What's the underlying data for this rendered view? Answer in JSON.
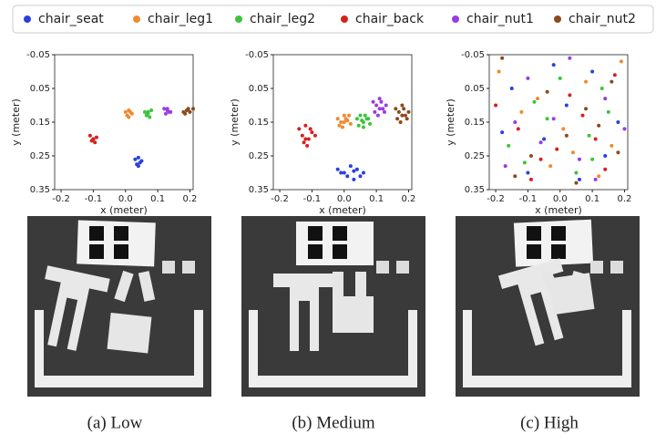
{
  "chart_data": [
    {
      "type": "scatter",
      "caption": "(a) Low",
      "xlabel": "x (meter)",
      "ylabel": "y (meter)",
      "xlim": [
        -0.22,
        0.21
      ],
      "ylim": [
        -0.05,
        0.35
      ],
      "y_inverted": true,
      "xticks": [
        -0.2,
        -0.1,
        {
          "value": 0,
          "label": "0.0"
        },
        0.1,
        0.2
      ],
      "yticks": [
        -0.05,
        0.05,
        0.15,
        0.25,
        0.35
      ],
      "series": [
        {
          "name": "chair_seat",
          "color": "#2b3fe0",
          "x": [
            0.03,
            0.04,
            0.05,
            0.035,
            0.045,
            0.04
          ],
          "values": [
            0.26,
            0.255,
            0.265,
            0.275,
            0.27,
            0.28
          ]
        },
        {
          "name": "chair_leg1",
          "color": "#f08a30",
          "x": [
            0.0,
            0.01,
            0.02,
            0.005,
            0.015,
            0.01
          ],
          "values": [
            0.12,
            0.115,
            0.125,
            0.13,
            0.12,
            0.135
          ]
        },
        {
          "name": "chair_leg2",
          "color": "#3cc43c",
          "x": [
            0.06,
            0.07,
            0.08,
            0.065,
            0.075,
            0.07
          ],
          "values": [
            0.12,
            0.125,
            0.115,
            0.13,
            0.135,
            0.12
          ]
        },
        {
          "name": "chair_back",
          "color": "#d62020",
          "x": [
            -0.11,
            -0.1,
            -0.09,
            -0.105,
            -0.095,
            -0.1
          ],
          "values": [
            0.19,
            0.2,
            0.195,
            0.205,
            0.21,
            0.2
          ]
        },
        {
          "name": "chair_nut1",
          "color": "#9a3ce0",
          "x": [
            0.12,
            0.13,
            0.14,
            0.125,
            0.135,
            0.13
          ],
          "values": [
            0.11,
            0.115,
            0.12,
            0.125,
            0.12,
            0.11
          ]
        },
        {
          "name": "chair_nut2",
          "color": "#8b4a1c",
          "x": [
            0.18,
            0.19,
            0.2,
            0.185,
            0.195,
            0.21
          ],
          "values": [
            0.12,
            0.115,
            0.12,
            0.125,
            0.11,
            0.11
          ]
        }
      ]
    },
    {
      "type": "scatter",
      "caption": "(b) Medium",
      "xlabel": "x (meter)",
      "ylabel": "y (meter)",
      "xlim": [
        -0.22,
        0.21
      ],
      "ylim": [
        -0.05,
        0.35
      ],
      "y_inverted": true,
      "xticks": [
        -0.2,
        -0.1,
        {
          "value": 0,
          "label": "0.0"
        },
        0.1,
        0.2
      ],
      "yticks": [
        -0.05,
        0.05,
        0.15,
        0.25,
        0.35
      ],
      "series": [
        {
          "color": "#2b3fe0",
          "x": [
            -0.02,
            0.0,
            0.02,
            0.04,
            0.06,
            0.01,
            0.03,
            0.05,
            -0.01,
            0.03
          ],
          "values": [
            0.29,
            0.3,
            0.28,
            0.29,
            0.3,
            0.31,
            0.32,
            0.31,
            0.3,
            0.295
          ]
        },
        {
          "color": "#f08a30",
          "x": [
            -0.02,
            -0.01,
            0.0,
            0.01,
            0.02,
            -0.005,
            0.005,
            0.015,
            -0.015,
            0.0
          ],
          "values": [
            0.14,
            0.15,
            0.13,
            0.145,
            0.155,
            0.165,
            0.14,
            0.13,
            0.16,
            0.15
          ]
        },
        {
          "color": "#3cc43c",
          "x": [
            0.04,
            0.05,
            0.06,
            0.07,
            0.08,
            0.045,
            0.055,
            0.065,
            0.075,
            0.06
          ],
          "values": [
            0.14,
            0.13,
            0.15,
            0.14,
            0.155,
            0.16,
            0.145,
            0.13,
            0.14,
            0.165
          ]
        },
        {
          "color": "#d62020",
          "x": [
            -0.14,
            -0.13,
            -0.12,
            -0.11,
            -0.1,
            -0.09,
            -0.125,
            -0.115,
            -0.105,
            -0.12
          ],
          "values": [
            0.17,
            0.19,
            0.16,
            0.2,
            0.18,
            0.19,
            0.21,
            0.22,
            0.17,
            0.2
          ]
        },
        {
          "color": "#9a3ce0",
          "x": [
            0.09,
            0.1,
            0.11,
            0.12,
            0.13,
            0.095,
            0.105,
            0.115,
            0.125,
            0.11
          ],
          "values": [
            0.09,
            0.1,
            0.08,
            0.11,
            0.1,
            0.12,
            0.13,
            0.09,
            0.12,
            0.11
          ]
        },
        {
          "color": "#8b4a1c",
          "x": [
            0.16,
            0.17,
            0.18,
            0.19,
            0.2,
            0.165,
            0.175,
            0.185,
            0.195,
            0.18
          ],
          "values": [
            0.11,
            0.12,
            0.1,
            0.13,
            0.12,
            0.14,
            0.15,
            0.11,
            0.14,
            0.13
          ]
        }
      ]
    },
    {
      "type": "scatter",
      "caption": "(c) High",
      "xlabel": "x (meter)",
      "ylabel": "y (meter)",
      "xlim": [
        -0.22,
        0.21
      ],
      "ylim": [
        -0.05,
        0.35
      ],
      "y_inverted": true,
      "xticks": [
        -0.2,
        -0.1,
        {
          "value": 0,
          "label": "0.0"
        },
        0.1,
        0.2
      ],
      "yticks": [
        -0.05,
        0.05,
        0.15,
        0.25,
        0.35
      ],
      "series": [
        {
          "color": "#2b3fe0",
          "x": [
            -0.15,
            -0.05,
            0.1,
            0.18,
            -0.1,
            0.02,
            0.14,
            -0.18,
            0.06,
            -0.02
          ],
          "values": [
            0.05,
            0.2,
            0.0,
            0.15,
            0.3,
            0.1,
            0.25,
            0.18,
            0.32,
            -0.02
          ]
        },
        {
          "color": "#f08a30",
          "x": [
            -0.12,
            0.08,
            -0.03,
            0.16,
            -0.19,
            0.01,
            0.12,
            -0.07,
            0.04,
            0.19
          ],
          "values": [
            0.12,
            0.03,
            0.28,
            0.22,
            0.0,
            0.17,
            0.31,
            0.08,
            0.24,
            -0.03
          ]
        },
        {
          "color": "#3cc43c",
          "x": [
            -0.16,
            -0.08,
            0.0,
            0.09,
            0.15,
            -0.11,
            0.05,
            0.13,
            -0.04,
            0.1
          ],
          "values": [
            0.22,
            0.09,
            0.02,
            0.19,
            0.12,
            0.27,
            0.3,
            0.05,
            0.14,
            0.26
          ]
        },
        {
          "color": "#d62020",
          "x": [
            -0.2,
            -0.13,
            -0.06,
            0.03,
            0.11,
            0.17,
            -0.09,
            0.07,
            -0.01,
            0.14
          ],
          "values": [
            0.1,
            0.17,
            0.26,
            0.07,
            0.2,
            0.01,
            0.32,
            0.13,
            0.23,
            0.29
          ]
        },
        {
          "color": "#9a3ce0",
          "x": [
            -0.17,
            -0.1,
            -0.02,
            0.06,
            0.14,
            0.2,
            -0.14,
            0.03,
            0.11,
            -0.06
          ],
          "values": [
            0.28,
            0.02,
            0.14,
            0.26,
            0.08,
            0.17,
            0.15,
            -0.04,
            0.32,
            0.21
          ]
        },
        {
          "color": "#8b4a1c",
          "x": [
            -0.18,
            -0.09,
            0.02,
            0.08,
            0.16,
            -0.14,
            -0.04,
            0.12,
            0.18,
            0.05
          ],
          "values": [
            -0.04,
            0.25,
            0.19,
            0.11,
            0.03,
            0.31,
            0.06,
            0.16,
            0.24,
            0.33
          ]
        }
      ]
    }
  ]
}
